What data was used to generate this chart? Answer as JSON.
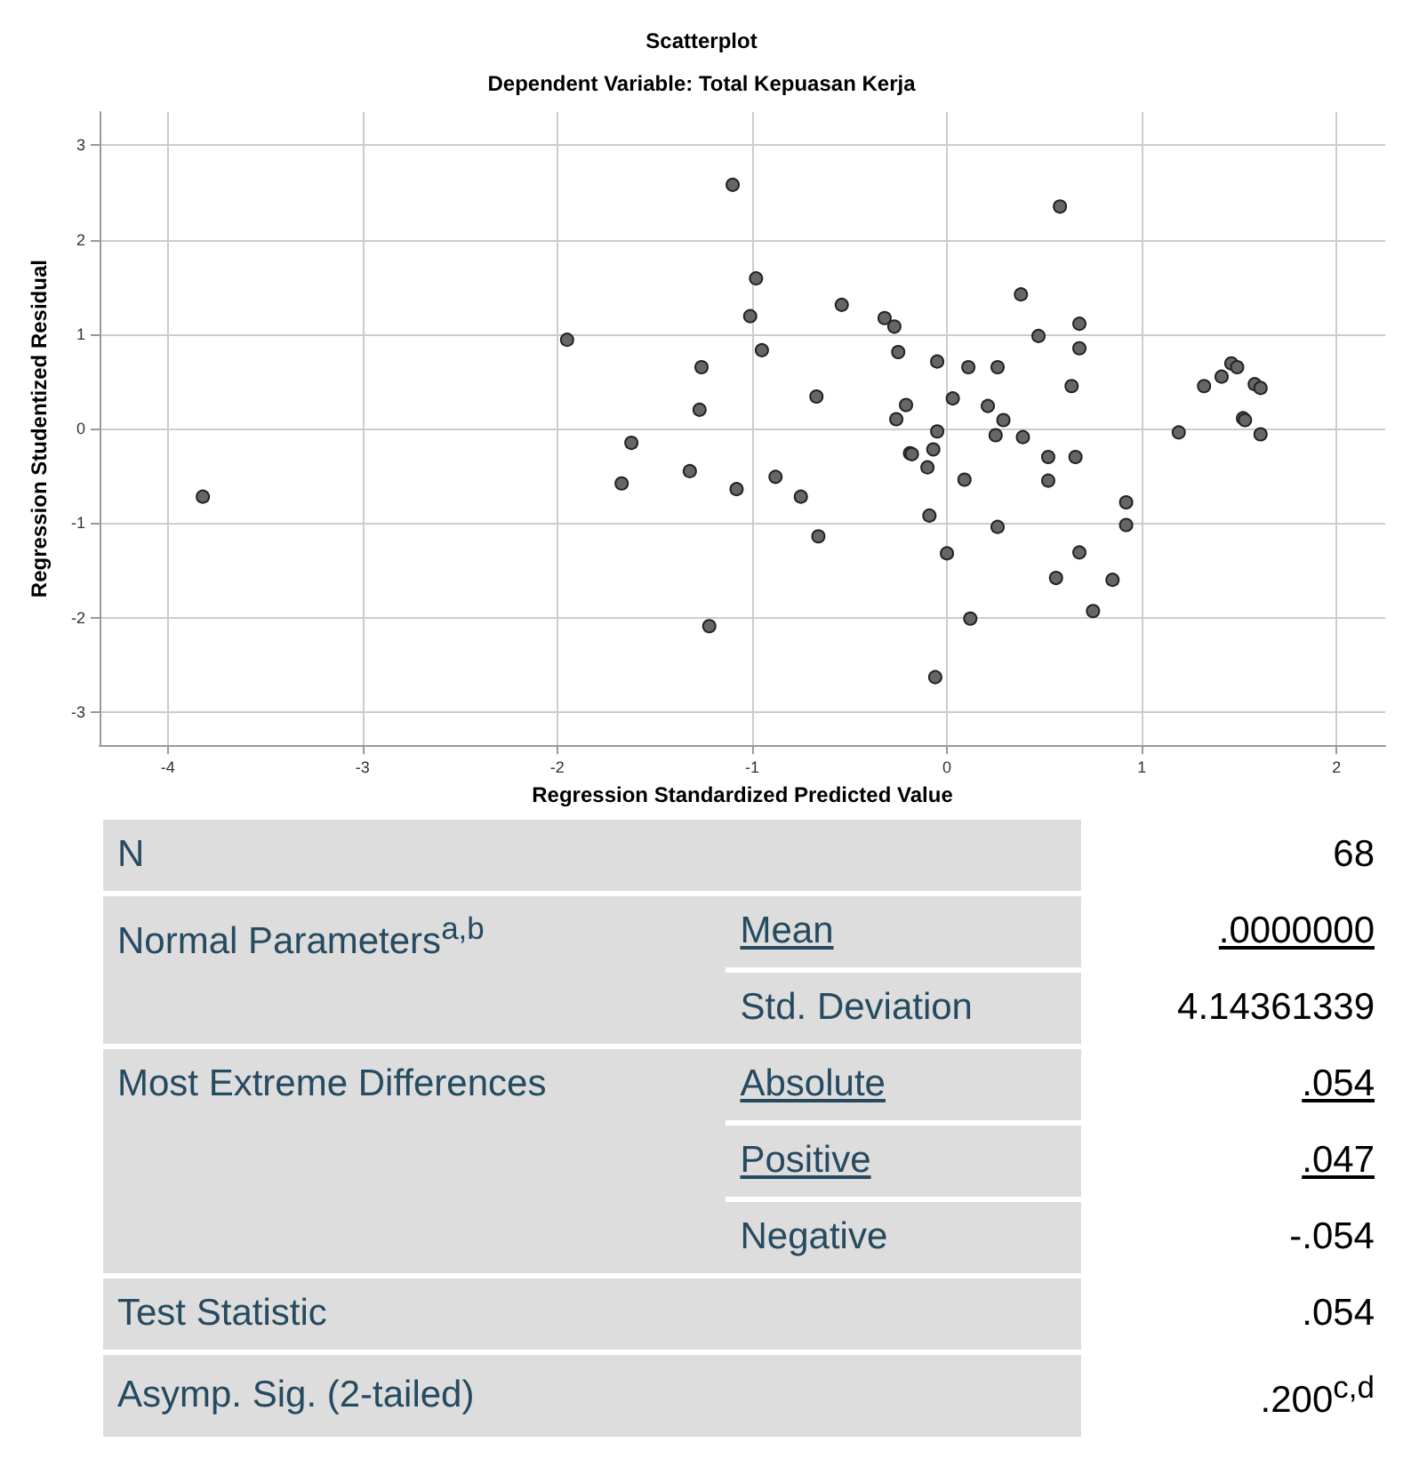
{
  "chart_data": [
    {
      "type": "scatter",
      "title": "Scatterplot",
      "subtitle": "Dependent Variable: Total Kepuasan Kerja",
      "xlabel": "Regression Standardized Predicted Value",
      "ylabel": "Regression Studentized Residual",
      "xlim": [
        -4.35,
        2.25
      ],
      "ylim": [
        -3.35,
        3.35
      ],
      "xticks": [
        -4,
        -3,
        -2,
        -1,
        0,
        1,
        2
      ],
      "yticks": [
        -3,
        -2,
        -1,
        0,
        1,
        2,
        3
      ],
      "grid": true,
      "marker": "circle",
      "series": [
        {
          "color": "#666666",
          "x": [
            -3.82,
            -1.95,
            -1.1,
            -0.98,
            -1.01,
            -0.95,
            -1.26,
            -1.27,
            -1.62,
            -1.67,
            -1.32,
            -1.08,
            -0.88,
            -0.75,
            -0.66,
            -0.67,
            -0.54,
            -0.32,
            -0.27,
            -0.25,
            -0.05,
            0.11,
            0.26,
            0.38,
            0.47,
            -0.21,
            -0.26,
            0.03,
            0.21,
            0.29,
            -0.05,
            0.25,
            0.39,
            -0.07,
            -0.19,
            -0.18,
            -0.1,
            0.09,
            -0.09,
            0.26,
            0.0,
            0.12,
            -1.22,
            -0.06,
            0.58,
            0.68,
            0.68,
            0.64,
            0.52,
            0.66,
            0.52,
            0.92,
            0.92,
            0.68,
            0.56,
            0.85,
            0.75,
            1.19,
            1.32,
            1.41,
            1.46,
            1.49,
            1.58,
            1.61,
            1.52,
            1.53,
            1.61
          ],
          "values": [
            -0.72,
            0.94,
            2.58,
            1.59,
            1.19,
            0.83,
            0.65,
            0.2,
            -0.15,
            -0.58,
            -0.45,
            -0.64,
            -0.51,
            -0.72,
            -1.14,
            0.34,
            1.31,
            1.17,
            1.08,
            0.81,
            0.71,
            0.65,
            0.65,
            1.42,
            0.98,
            0.25,
            0.1,
            0.32,
            0.24,
            0.09,
            -0.03,
            -0.07,
            -0.09,
            -0.22,
            -0.26,
            -0.27,
            -0.41,
            -0.54,
            -0.92,
            -1.04,
            -1.32,
            -2.01,
            -2.09,
            -2.63,
            2.35,
            1.11,
            0.85,
            0.45,
            -0.3,
            -0.3,
            -0.55,
            -0.78,
            -1.02,
            -1.31,
            -1.58,
            -1.6,
            -1.93,
            -0.04,
            0.45,
            0.55,
            0.69,
            0.65,
            0.47,
            0.43,
            0.11,
            0.09,
            -0.06
          ]
        }
      ]
    },
    {
      "type": "other",
      "annotations": [
        "N",
        "68",
        "Normal Parameters$^{a,b}$",
        "Mean",
        ".0000000",
        "Std. Deviation",
        "4.14361339",
        "Most Extreme Differences",
        "Absolute",
        ".054",
        "Positive",
        ".047",
        "Negative",
        "-.054",
        "Test Statistic",
        ".054",
        "Asymp. Sig. (2-tailed)",
        ".200$^{c,d}$"
      ]
    }
  ]
}
